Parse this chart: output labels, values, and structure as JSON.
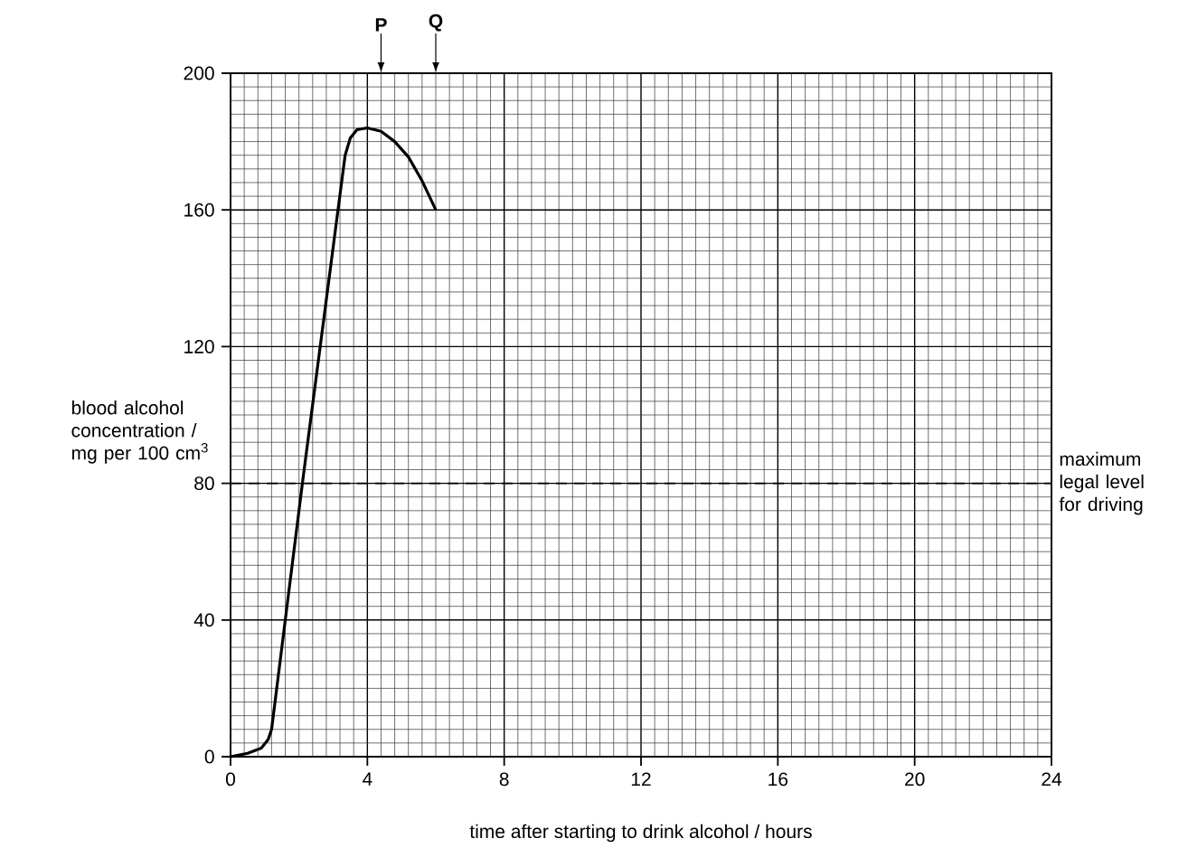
{
  "chart_data": {
    "type": "line",
    "xlabel": "time after starting to drink alcohol / hours",
    "ylabel": "blood alcohol concentration / mg per 100 cm$^{3}$",
    "x": [
      0,
      0.5,
      0.9,
      1.1,
      1.2,
      2.1,
      3.35,
      3.5,
      3.7,
      4,
      4.4,
      4.8,
      5.2,
      5.6,
      6
    ],
    "values": [
      0,
      1,
      2.5,
      5,
      8,
      80,
      176,
      181,
      183.5,
      184,
      183,
      180,
      175.5,
      168.5,
      160
    ],
    "color": "#000000",
    "xlim": [
      0,
      24
    ],
    "ylim": [
      0,
      200
    ],
    "xticks": [
      0,
      4,
      8,
      12,
      16,
      20,
      24
    ],
    "yticks": [
      0,
      40,
      80,
      120,
      160,
      200
    ],
    "grid": true,
    "ref_lines": [
      {
        "axis": "y",
        "value": 80,
        "label": "maximum legal level for driving",
        "line_style": "dashed"
      },
      {
        "axis": "x",
        "value": 4.4,
        "label": "P"
      },
      {
        "axis": "x",
        "value": 6,
        "label": "Q"
      }
    ]
  }
}
